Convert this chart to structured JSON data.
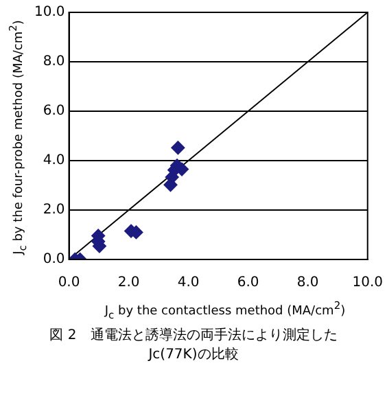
{
  "chart_data": {
    "type": "scatter",
    "xlabel": "J$_{c}$ by the contactless method (MA/cm$^{2}$)",
    "ylabel": "J$_{c}$ by the four-probe method (MA/cm$^{2}$)",
    "annotations": [
      "図 2　通電法と誘導法の両手法により測定した Jc(77K)の比較"
    ],
    "series": [
      {
        "type": "scatter",
        "color": "#1c1c80",
        "x": [
          0.2,
          0.37,
          0.98,
          0.98,
          1.02,
          2.08,
          2.25,
          3.4,
          3.45,
          3.53,
          3.62,
          3.65,
          3.78
        ],
        "values": [
          0,
          0,
          0.96,
          0.73,
          0.54,
          1.15,
          1.1,
          3.02,
          3.33,
          3.62,
          3.8,
          4.52,
          3.65
        ],
        "marker": "diamond"
      },
      {
        "type": "line",
        "color": "#000000",
        "x": [
          0,
          10
        ],
        "values": [
          0,
          10
        ],
        "marker": "none"
      }
    ],
    "xlim": [
      0,
      10
    ],
    "ylim": [
      0,
      10
    ],
    "xticks": [
      {
        "value": 0,
        "label": "0.0"
      },
      {
        "value": 2,
        "label": "2.0"
      },
      {
        "value": 4,
        "label": "4.0"
      },
      {
        "value": 6,
        "label": "6.0"
      },
      {
        "value": 8,
        "label": "8.0"
      },
      {
        "value": 10,
        "label": "10.0"
      }
    ],
    "yticks": [
      {
        "value": 0,
        "label": "0.0"
      },
      {
        "value": 2,
        "label": "2.0"
      },
      {
        "value": 4,
        "label": "4.0"
      },
      {
        "value": 6,
        "label": "6.0"
      },
      {
        "value": 8,
        "label": "8.0"
      },
      {
        "value": 10,
        "label": "10.0"
      }
    ],
    "grid": "y",
    "legend": false
  }
}
